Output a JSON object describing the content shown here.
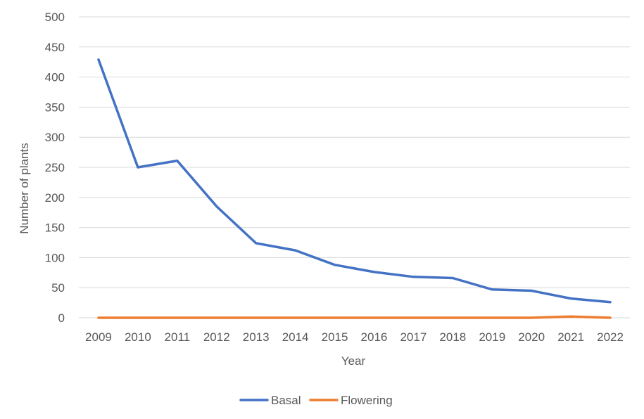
{
  "chart_data": {
    "type": "line",
    "x": [
      "2009",
      "2010",
      "2011",
      "2012",
      "2013",
      "2014",
      "2015",
      "2016",
      "2017",
      "2018",
      "2019",
      "2020",
      "2021",
      "2022"
    ],
    "series": [
      {
        "name": "Basal",
        "color": "#4472C4",
        "values": [
          429,
          250,
          261,
          185,
          124,
          112,
          88,
          76,
          68,
          66,
          47,
          45,
          32,
          26
        ]
      },
      {
        "name": "Flowering",
        "color": "#ED7D31",
        "values": [
          0,
          0,
          0,
          0,
          0,
          0,
          0,
          0,
          0,
          0,
          0,
          0,
          2,
          0
        ]
      }
    ],
    "title": "",
    "xlabel": "Year",
    "ylabel": "Number of plants",
    "ylim": [
      0,
      500
    ],
    "yticks": [
      "0",
      "50",
      "100",
      "150",
      "200",
      "250",
      "300",
      "350",
      "400",
      "450",
      "500"
    ],
    "grid": true,
    "legend_position": "bottom"
  }
}
